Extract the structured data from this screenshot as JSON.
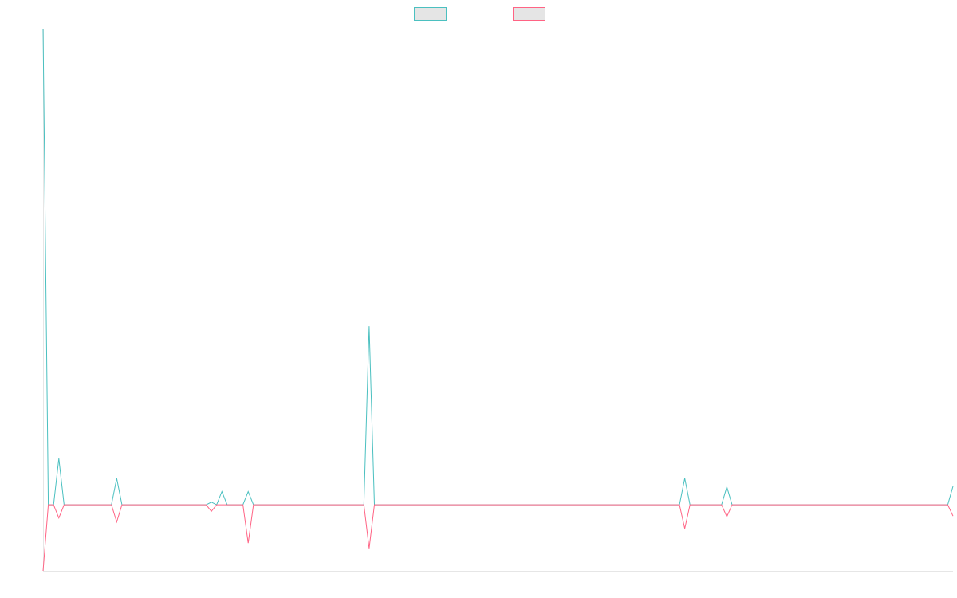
{
  "chart_data": {
    "type": "line",
    "title": "",
    "xlabel": "",
    "ylabel": "",
    "grid": false,
    "legend": "top-center",
    "x_range": [
      0,
      173
    ],
    "ylim": [
      -10,
      72
    ],
    "series": [
      {
        "name": "",
        "color": "#4bc0c0",
        "legend_fill": "#e5e5e5",
        "points": [
          [
            0,
            72
          ],
          [
            1,
            0
          ],
          [
            2,
            0
          ],
          [
            3,
            7
          ],
          [
            4,
            0
          ],
          [
            13,
            0
          ],
          [
            14,
            4
          ],
          [
            15,
            0
          ],
          [
            31,
            0
          ],
          [
            32,
            0.4
          ],
          [
            33,
            0
          ],
          [
            34,
            2
          ],
          [
            35,
            0
          ],
          [
            38,
            0
          ],
          [
            39,
            2
          ],
          [
            40,
            0
          ],
          [
            61,
            0
          ],
          [
            62,
            27
          ],
          [
            63,
            0
          ],
          [
            121,
            0
          ],
          [
            122,
            4
          ],
          [
            123,
            0
          ],
          [
            129,
            0
          ],
          [
            130,
            2.7
          ],
          [
            131,
            0
          ],
          [
            172,
            0
          ],
          [
            173,
            2.8
          ]
        ]
      },
      {
        "name": "",
        "color": "#ff6384",
        "legend_fill": "#e5e5e5",
        "points": [
          [
            0,
            -10
          ],
          [
            1,
            0
          ],
          [
            2,
            0
          ],
          [
            3,
            -2
          ],
          [
            4,
            0
          ],
          [
            13,
            0
          ],
          [
            14,
            -2.6
          ],
          [
            15,
            0
          ],
          [
            31,
            0
          ],
          [
            32,
            -1
          ],
          [
            33,
            0
          ],
          [
            34,
            0
          ],
          [
            38,
            0
          ],
          [
            39,
            -5.8
          ],
          [
            40,
            0
          ],
          [
            61,
            0
          ],
          [
            62,
            -6.6
          ],
          [
            63,
            0
          ],
          [
            121,
            0
          ],
          [
            122,
            -3.6
          ],
          [
            123,
            0
          ],
          [
            129,
            0
          ],
          [
            130,
            -1.8
          ],
          [
            131,
            0
          ],
          [
            172,
            0
          ],
          [
            173,
            -1.7
          ]
        ]
      }
    ]
  }
}
